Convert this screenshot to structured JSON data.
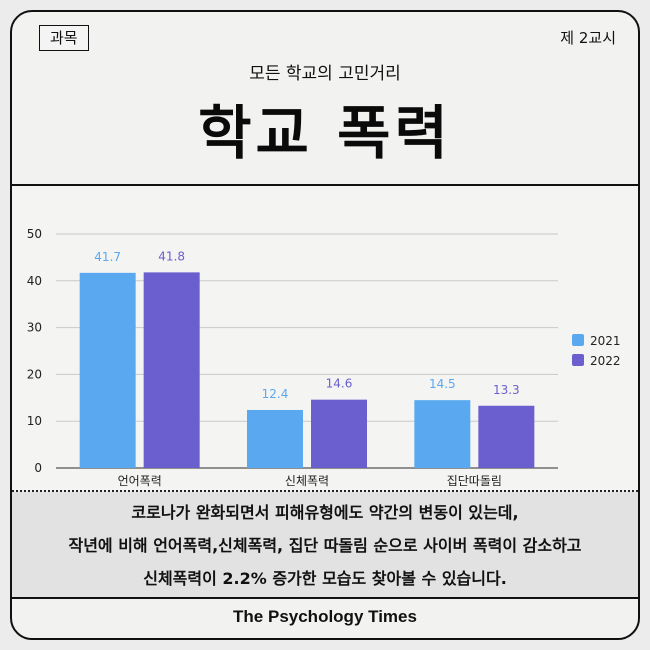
{
  "header": {
    "subject_tag": "과목",
    "period": "제 2교시",
    "subtitle": "모든 학교의 고민거리",
    "title": "학교 폭력"
  },
  "chart_data": {
    "type": "bar",
    "categories": [
      "언어폭력",
      "신체폭력",
      "집단따돌림"
    ],
    "series": [
      {
        "name": "2021",
        "values": [
          41.7,
          12.4,
          14.5
        ],
        "color": "#5aa9f0"
      },
      {
        "name": "2022",
        "values": [
          41.8,
          14.6,
          13.3
        ],
        "color": "#6b5fcf"
      }
    ],
    "data_labels": [
      [
        "41.7",
        "12.4",
        "14.5"
      ],
      [
        "41.8",
        "14.6",
        "13.3"
      ]
    ],
    "y_ticks": [
      "0",
      "10",
      "20",
      "30",
      "40",
      "50"
    ],
    "ylim": [
      0,
      50
    ],
    "title": "",
    "xlabel": "",
    "ylabel": "",
    "grid": true,
    "legend_position": "right"
  },
  "caption": {
    "lines": [
      "코로나가 완화되면서 피해유형에도 약간의 변동이 있는데,",
      "작년에 비해 언어폭력,신체폭력, 집단 따돌림 순으로 사이버 폭력이 감소하고",
      "신체폭력이 2.2% 증가한 모습도 찾아볼 수 있습니다."
    ]
  },
  "footer": {
    "brand": "The Psychology Times"
  }
}
